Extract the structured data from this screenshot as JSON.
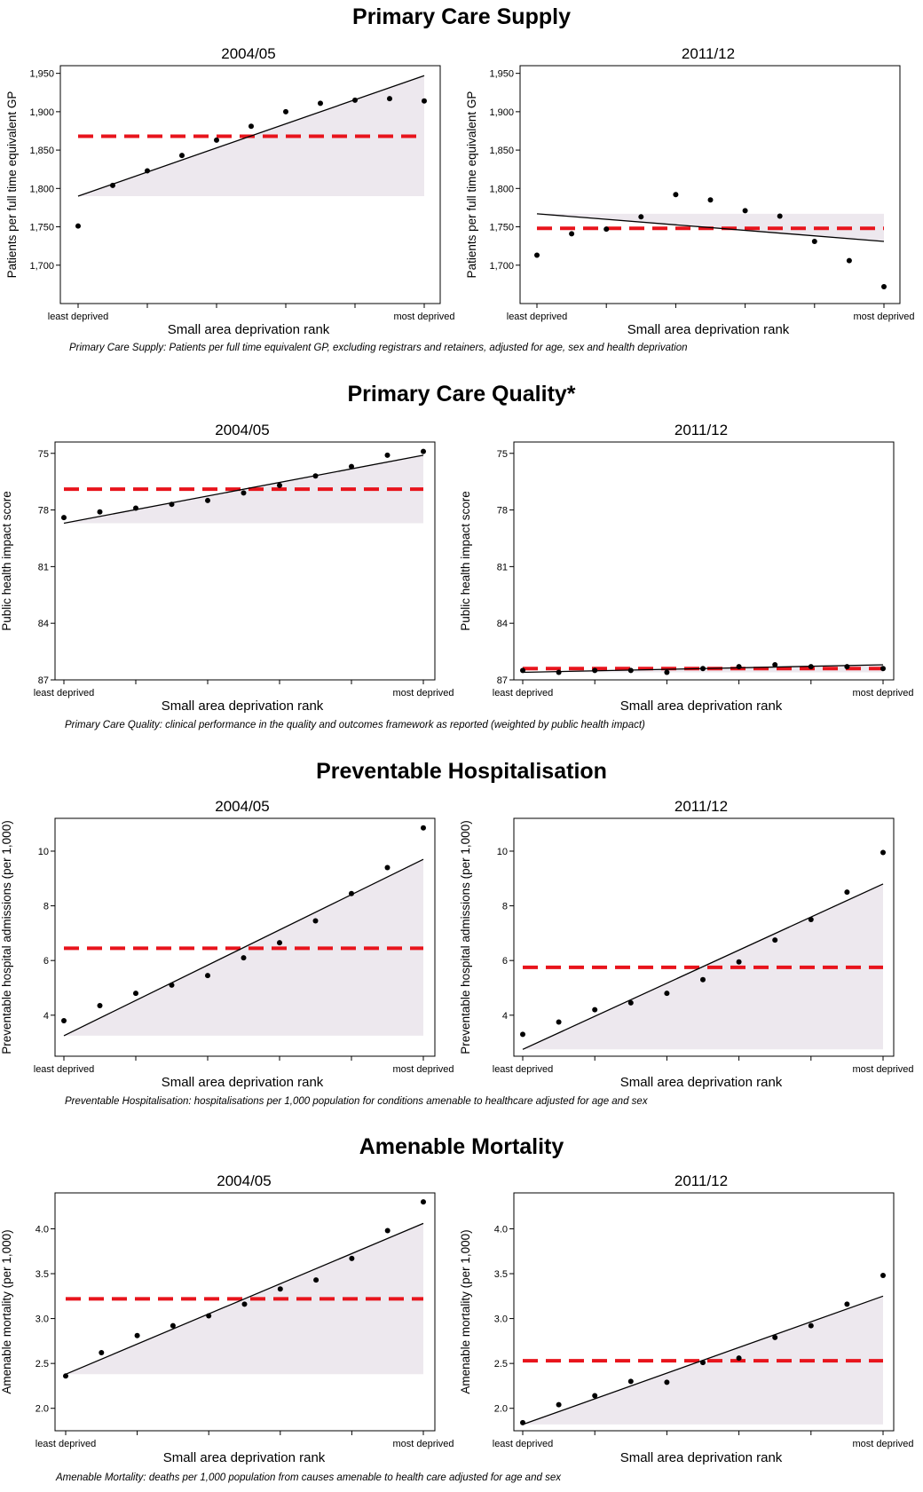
{
  "sections": [
    {
      "title": "Primary Care Supply",
      "caption": "Primary Care Supply: Patients per full time equivalent GP, excluding registrars and retainers, adjusted for age, sex and health deprivation"
    },
    {
      "title": "Primary Care Quality*",
      "caption": "Primary Care Quality: clinical performance in the quality and outcomes framework as reported (weighted by public health impact)"
    },
    {
      "title": "Preventable Hospitalisation",
      "caption": "Preventable Hospitalisation: hospitalisations per 1,000 population for conditions amenable to healthcare adjusted for age and sex"
    },
    {
      "title": "Amenable Mortality",
      "caption": "Amenable Mortality: deaths per 1,000 population from causes amenable to health care adjusted for age and sex"
    }
  ],
  "colors": {
    "mean_line": "#e8141c",
    "shade": "#ede8ee",
    "points": "#000000"
  },
  "chart_data": [
    {
      "type": "scatter",
      "title": "2004/05",
      "section": 0,
      "xlabel": "Small area deprivation rank",
      "ylabel": "Patients per full time equivalent GP",
      "x_tick_labels": [
        "least deprived",
        "most deprived"
      ],
      "ylim": [
        1650,
        1960
      ],
      "reversed": false,
      "yticks": [
        1700,
        1750,
        1800,
        1850,
        1900,
        1950
      ],
      "ytick_labels": [
        "1,700",
        "1,750",
        "1,800",
        "1,850",
        "1,900",
        "1,950"
      ],
      "x": [
        1,
        2,
        3,
        4,
        5,
        6,
        7,
        8,
        9,
        10,
        11
      ],
      "y": [
        1751,
        1804,
        1823,
        1843,
        1863,
        1881,
        1900,
        1911,
        1915,
        1917,
        1914
      ],
      "trend": [
        1790,
        1947
      ],
      "mean": 1868
    },
    {
      "type": "scatter",
      "title": "2011/12",
      "section": 0,
      "xlabel": "Small area deprivation rank",
      "ylabel": "Patients per full time equivalent GP",
      "x_tick_labels": [
        "least deprived",
        "most deprived"
      ],
      "ylim": [
        1650,
        1960
      ],
      "reversed": false,
      "yticks": [
        1700,
        1750,
        1800,
        1850,
        1900,
        1950
      ],
      "ytick_labels": [
        "1,700",
        "1,750",
        "1,800",
        "1,850",
        "1,900",
        "1,950"
      ],
      "x": [
        1,
        2,
        3,
        4,
        5,
        6,
        7,
        8,
        9,
        10,
        11
      ],
      "y": [
        1713,
        1741,
        1747,
        1763,
        1792,
        1785,
        1771,
        1764,
        1731,
        1706,
        1672
      ],
      "trend": [
        1767,
        1731
      ],
      "mean": 1748
    },
    {
      "type": "scatter",
      "title": "2004/05",
      "section": 1,
      "xlabel": "Small area deprivation rank",
      "ylabel": "Public health impact score",
      "x_tick_labels": [
        "least deprived",
        "most deprived"
      ],
      "ylim": [
        74.4,
        87
      ],
      "reversed": true,
      "yticks": [
        75,
        78,
        81,
        84,
        87
      ],
      "ytick_labels": [
        "75",
        "78",
        "81",
        "84",
        "87"
      ],
      "x": [
        1,
        2,
        3,
        4,
        5,
        6,
        7,
        8,
        9,
        10,
        11
      ],
      "y": [
        78.4,
        78.1,
        77.9,
        77.7,
        77.5,
        77.1,
        76.7,
        76.2,
        75.7,
        75.1,
        74.9
      ],
      "trend": [
        78.7,
        75.1
      ],
      "mean": 76.9
    },
    {
      "type": "scatter",
      "title": "2011/12",
      "section": 1,
      "xlabel": "Small area deprivation rank",
      "ylabel": "Public health impact score",
      "x_tick_labels": [
        "least deprived",
        "most deprived"
      ],
      "ylim": [
        74.4,
        87
      ],
      "reversed": true,
      "yticks": [
        75,
        78,
        81,
        84,
        87
      ],
      "ytick_labels": [
        "75",
        "78",
        "81",
        "84",
        "87"
      ],
      "x": [
        1,
        2,
        3,
        4,
        5,
        6,
        7,
        8,
        9,
        10,
        11
      ],
      "y": [
        86.5,
        86.6,
        86.5,
        86.5,
        86.6,
        86.4,
        86.3,
        86.2,
        86.3,
        86.3,
        86.4
      ],
      "trend": [
        86.6,
        86.2
      ],
      "mean": 86.4
    },
    {
      "type": "scatter",
      "title": "2004/05",
      "section": 2,
      "xlabel": "Small area deprivation rank",
      "ylabel": "Preventable hospital admissions (per 1,000)",
      "x_tick_labels": [
        "least deprived",
        "most deprived"
      ],
      "ylim": [
        2.5,
        11.2
      ],
      "reversed": false,
      "yticks": [
        4,
        6,
        8,
        10
      ],
      "ytick_labels": [
        "4",
        "6",
        "8",
        "10"
      ],
      "x": [
        1,
        2,
        3,
        4,
        5,
        6,
        7,
        8,
        9,
        10,
        11
      ],
      "y": [
        3.8,
        4.35,
        4.8,
        5.1,
        5.45,
        6.1,
        6.65,
        7.45,
        8.45,
        9.4,
        10.85
      ],
      "trend": [
        3.25,
        9.7
      ],
      "mean": 6.45
    },
    {
      "type": "scatter",
      "title": "2011/12",
      "section": 2,
      "xlabel": "Small area deprivation rank",
      "ylabel": "Preventable hospital admissions (per 1,000)",
      "x_tick_labels": [
        "least deprived",
        "most deprived"
      ],
      "ylim": [
        2.5,
        11.2
      ],
      "reversed": false,
      "yticks": [
        4,
        6,
        8,
        10
      ],
      "ytick_labels": [
        "4",
        "6",
        "8",
        "10"
      ],
      "x": [
        1,
        2,
        3,
        4,
        5,
        6,
        7,
        8,
        9,
        10,
        11
      ],
      "y": [
        3.3,
        3.75,
        4.2,
        4.45,
        4.8,
        5.3,
        5.95,
        6.75,
        7.5,
        8.5,
        9.95
      ],
      "trend": [
        2.75,
        8.8
      ],
      "mean": 5.75
    },
    {
      "type": "scatter",
      "title": "2004/05",
      "section": 3,
      "xlabel": "Small area deprivation rank",
      "ylabel": "Amenable mortality (per 1,000)",
      "x_tick_labels": [
        "least deprived",
        "most deprived"
      ],
      "ylim": [
        1.75,
        4.4
      ],
      "reversed": false,
      "yticks": [
        2.0,
        2.5,
        3.0,
        3.5,
        4.0
      ],
      "ytick_labels": [
        "2.0",
        "2.5",
        "3.0",
        "3.5",
        "4.0"
      ],
      "x": [
        1,
        2,
        3,
        4,
        5,
        6,
        7,
        8,
        9,
        10,
        11
      ],
      "y": [
        2.36,
        2.62,
        2.81,
        2.92,
        3.03,
        3.16,
        3.33,
        3.43,
        3.67,
        3.98,
        4.3
      ],
      "trend": [
        2.38,
        4.06
      ],
      "mean": 3.22
    },
    {
      "type": "scatter",
      "title": "2011/12",
      "section": 3,
      "xlabel": "Small area deprivation rank",
      "ylabel": "Amenable mortality (per 1,000)",
      "x_tick_labels": [
        "least deprived",
        "most deprived"
      ],
      "ylim": [
        1.75,
        4.4
      ],
      "reversed": false,
      "yticks": [
        2.0,
        2.5,
        3.0,
        3.5,
        4.0
      ],
      "ytick_labels": [
        "2.0",
        "2.5",
        "3.0",
        "3.5",
        "4.0"
      ],
      "x": [
        1,
        2,
        3,
        4,
        5,
        6,
        7,
        8,
        9,
        10,
        11
      ],
      "y": [
        1.84,
        2.04,
        2.14,
        2.3,
        2.29,
        2.51,
        2.56,
        2.79,
        2.92,
        3.16,
        3.48
      ],
      "trend": [
        1.82,
        3.25
      ],
      "mean": 2.53
    }
  ]
}
